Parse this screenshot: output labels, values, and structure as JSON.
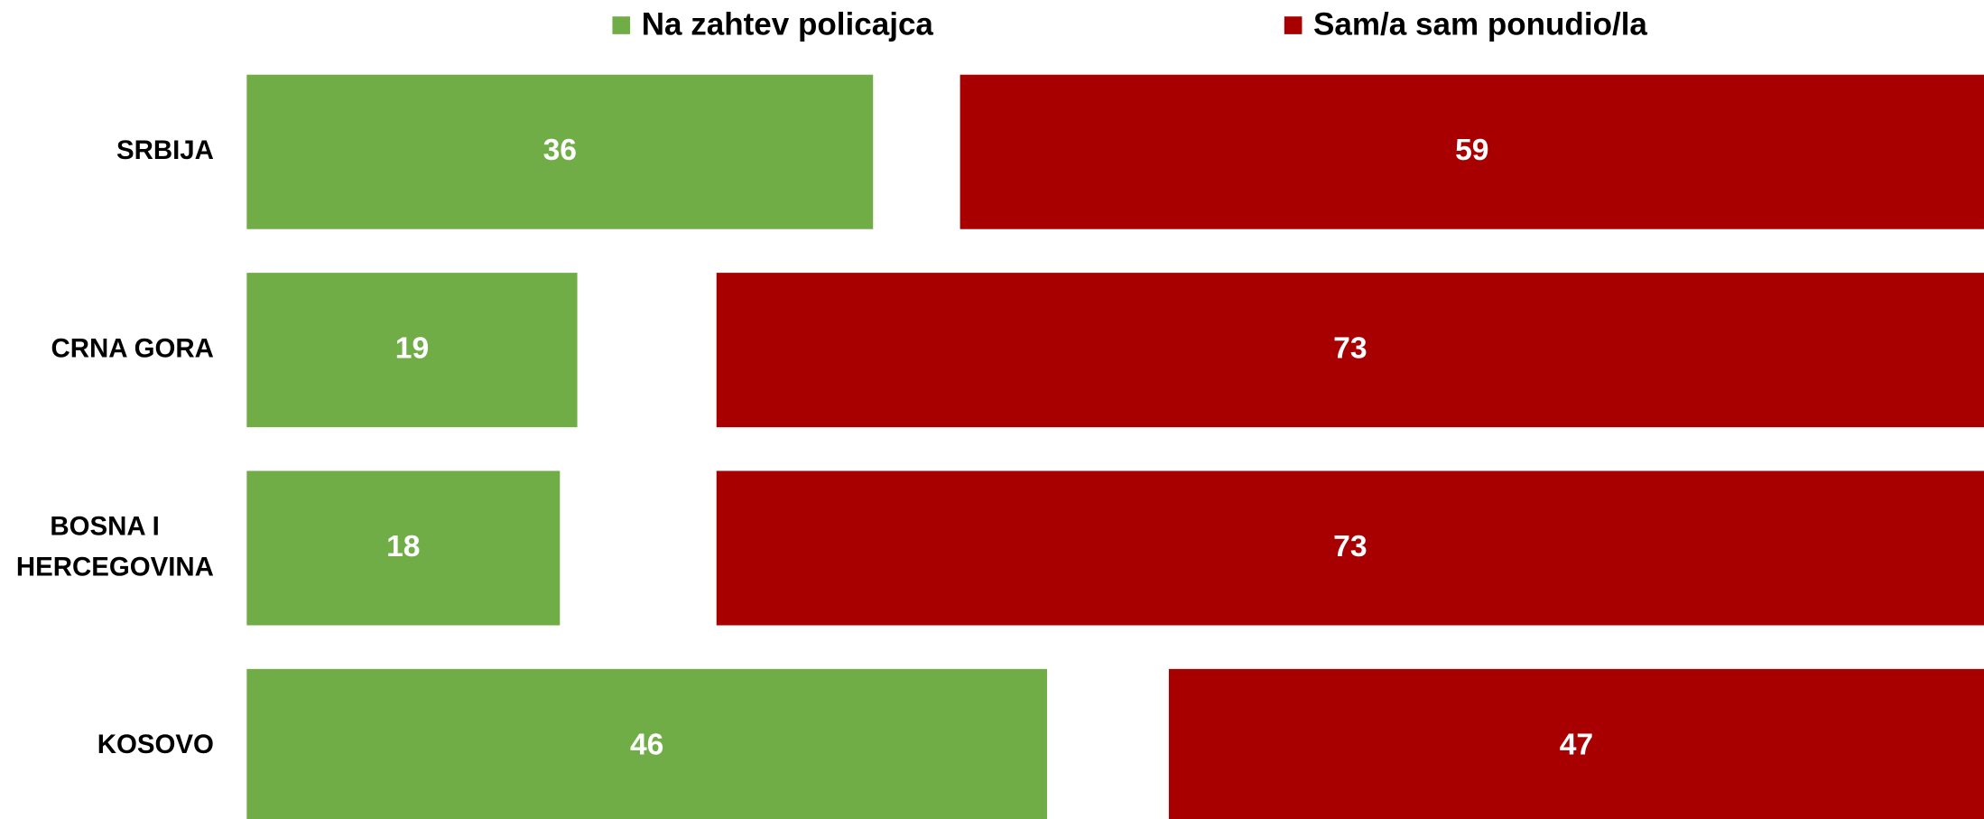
{
  "chart_data": {
    "type": "bar",
    "orientation": "horizontal",
    "categories": [
      "SRBIJA",
      "CRNA GORA",
      "BOSNA I HERCEGOVINA",
      "KOSOVO"
    ],
    "series": [
      {
        "name": "Na zahtev policajca",
        "color": "#70ad47",
        "values": [
          36,
          19,
          18,
          46
        ]
      },
      {
        "name": "Sam/a sam ponudio/la",
        "color": "#a80000",
        "values": [
          59,
          73,
          73,
          47
        ]
      }
    ],
    "xlim": [
      0,
      100
    ],
    "legend": "top"
  }
}
